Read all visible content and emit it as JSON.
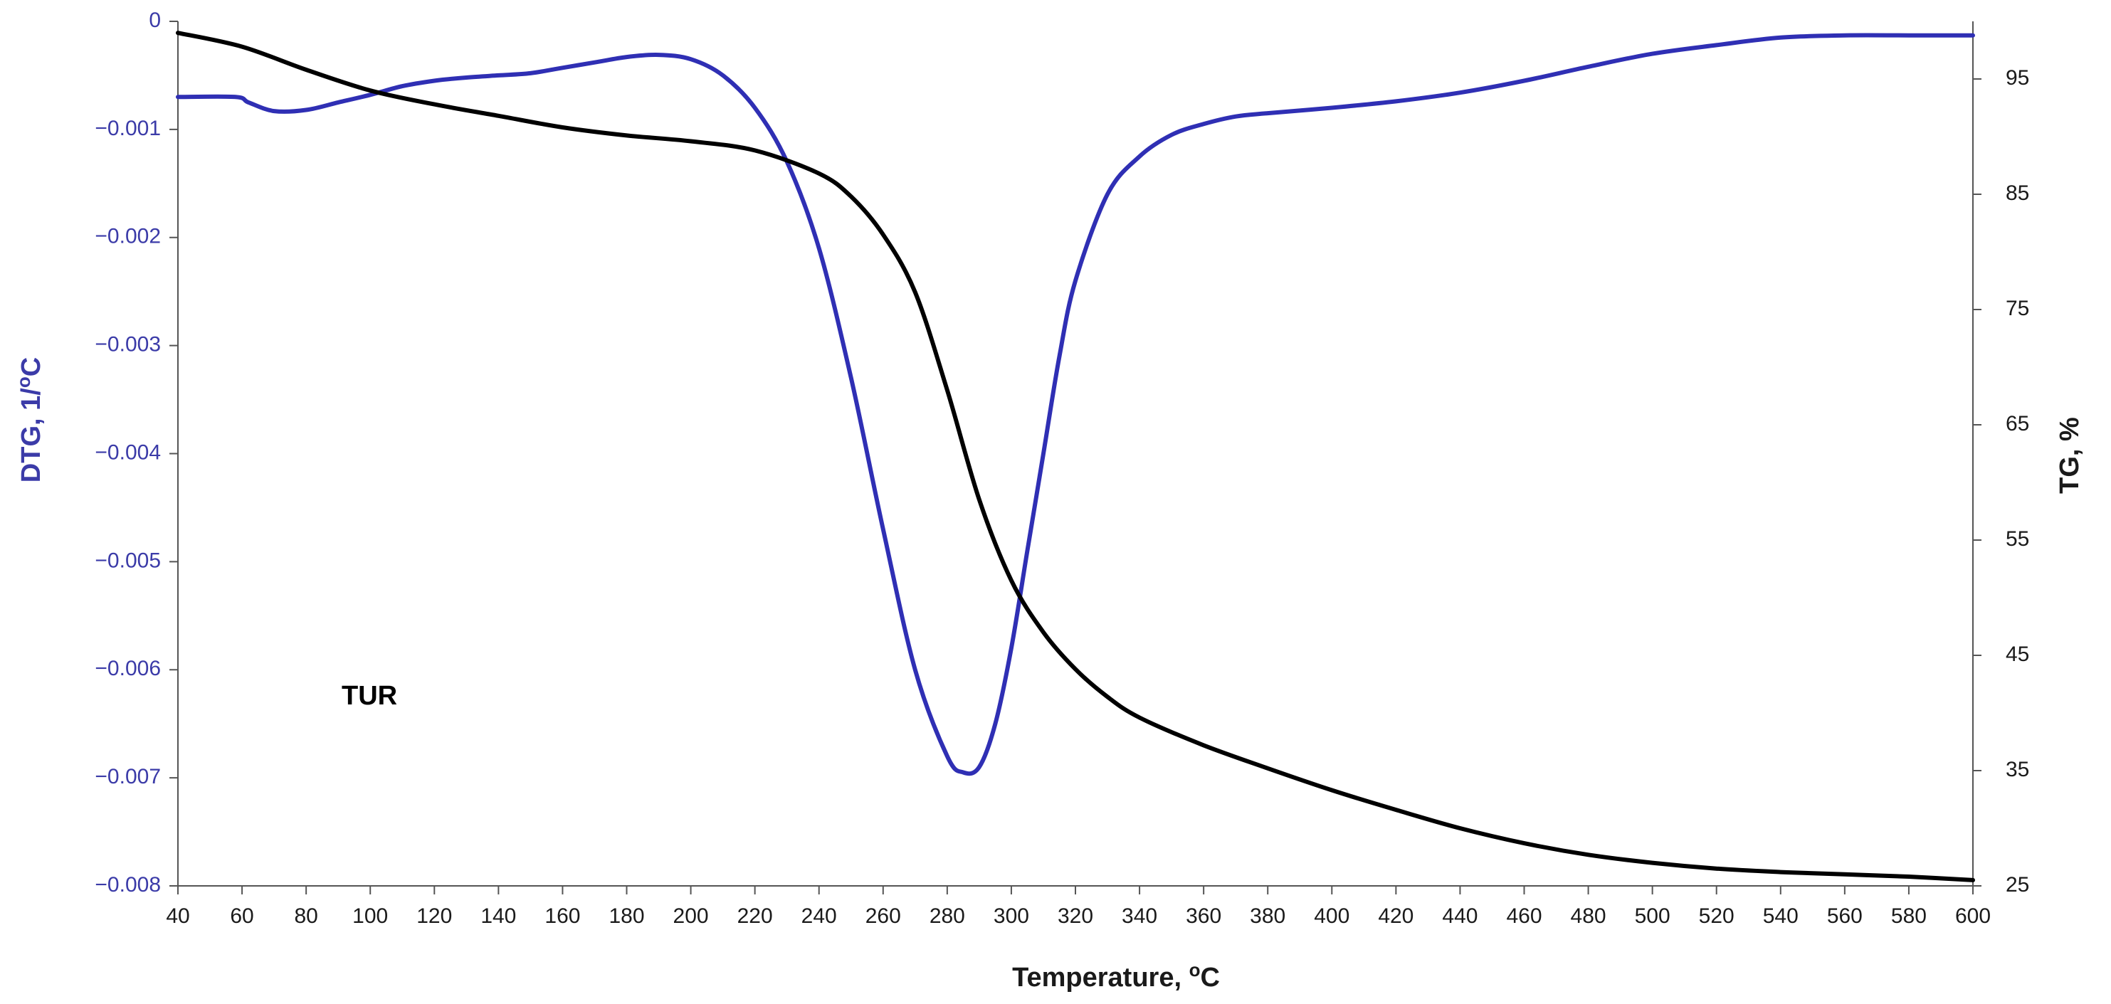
{
  "chart_data": {
    "type": "line",
    "title": "",
    "annotation": "TUR",
    "grid": false,
    "legend": "none",
    "x_axis": {
      "label": "Temperature, ",
      "label_superscript": "o",
      "label_suffix": "C",
      "range": [
        40,
        600
      ],
      "ticks": [
        40,
        60,
        80,
        100,
        120,
        140,
        160,
        180,
        200,
        220,
        240,
        260,
        280,
        300,
        320,
        340,
        360,
        380,
        400,
        420,
        440,
        460,
        480,
        500,
        520,
        540,
        560,
        580,
        600
      ]
    },
    "y_left_axis": {
      "label": "DTG, 1/",
      "label_superscript": "o",
      "label_suffix": "C",
      "range": [
        -0.008,
        0
      ],
      "ticks": [
        0,
        -0.001,
        -0.002,
        -0.003,
        -0.004,
        -0.005,
        -0.006,
        -0.007,
        -0.008
      ],
      "tick_labels": [
        "0",
        "−0.001",
        "−0.002",
        "−0.003",
        "−0.004",
        "−0.005",
        "−0.006",
        "−0.007",
        "−0.008"
      ],
      "color": "#3b3ba8"
    },
    "y_right_axis": {
      "label": "TG, %",
      "range": [
        25,
        100
      ],
      "ticks": [
        25,
        35,
        45,
        55,
        65,
        75,
        85,
        95
      ],
      "color": "#1a1a1a"
    },
    "series": [
      {
        "axis": "left",
        "color": "#2f2fb4",
        "x": [
          40,
          58,
          62,
          70,
          80,
          90,
          100,
          110,
          120,
          130,
          140,
          150,
          160,
          170,
          180,
          190,
          200,
          210,
          220,
          230,
          240,
          250,
          260,
          270,
          280,
          285,
          290,
          295,
          300,
          305,
          310,
          315,
          320,
          330,
          340,
          350,
          360,
          370,
          380,
          400,
          420,
          440,
          460,
          480,
          500,
          520,
          540,
          560,
          580,
          600
        ],
        "y": [
          -0.0007,
          -0.0007,
          -0.00075,
          -0.00083,
          -0.00082,
          -0.00075,
          -0.00068,
          -0.0006,
          -0.00055,
          -0.00052,
          -0.0005,
          -0.00048,
          -0.00043,
          -0.00038,
          -0.00033,
          -0.00031,
          -0.00035,
          -0.0005,
          -0.0008,
          -0.0013,
          -0.0021,
          -0.0033,
          -0.0047,
          -0.006,
          -0.0068,
          -0.00695,
          -0.0069,
          -0.0065,
          -0.0058,
          -0.0049,
          -0.004,
          -0.0031,
          -0.0024,
          -0.0016,
          -0.00125,
          -0.00105,
          -0.00095,
          -0.00088,
          -0.00085,
          -0.0008,
          -0.00074,
          -0.00066,
          -0.00055,
          -0.00042,
          -0.0003,
          -0.00022,
          -0.00015,
          -0.00013,
          -0.00013,
          -0.00013
        ]
      },
      {
        "axis": "right",
        "color": "#000000",
        "x": [
          40,
          60,
          80,
          100,
          120,
          140,
          160,
          180,
          200,
          220,
          240,
          250,
          260,
          270,
          280,
          290,
          300,
          310,
          320,
          330,
          340,
          360,
          380,
          400,
          420,
          440,
          460,
          480,
          500,
          520,
          540,
          560,
          580,
          600
        ],
        "y": [
          99.0,
          97.8,
          95.8,
          94.0,
          92.8,
          91.8,
          90.8,
          90.1,
          89.6,
          88.8,
          86.8,
          84.8,
          81.5,
          76.5,
          68.0,
          58.5,
          51.5,
          47.0,
          43.8,
          41.4,
          39.6,
          37.2,
          35.2,
          33.3,
          31.6,
          30.0,
          28.7,
          27.7,
          27.0,
          26.5,
          26.2,
          26.0,
          25.8,
          25.5
        ]
      }
    ]
  }
}
